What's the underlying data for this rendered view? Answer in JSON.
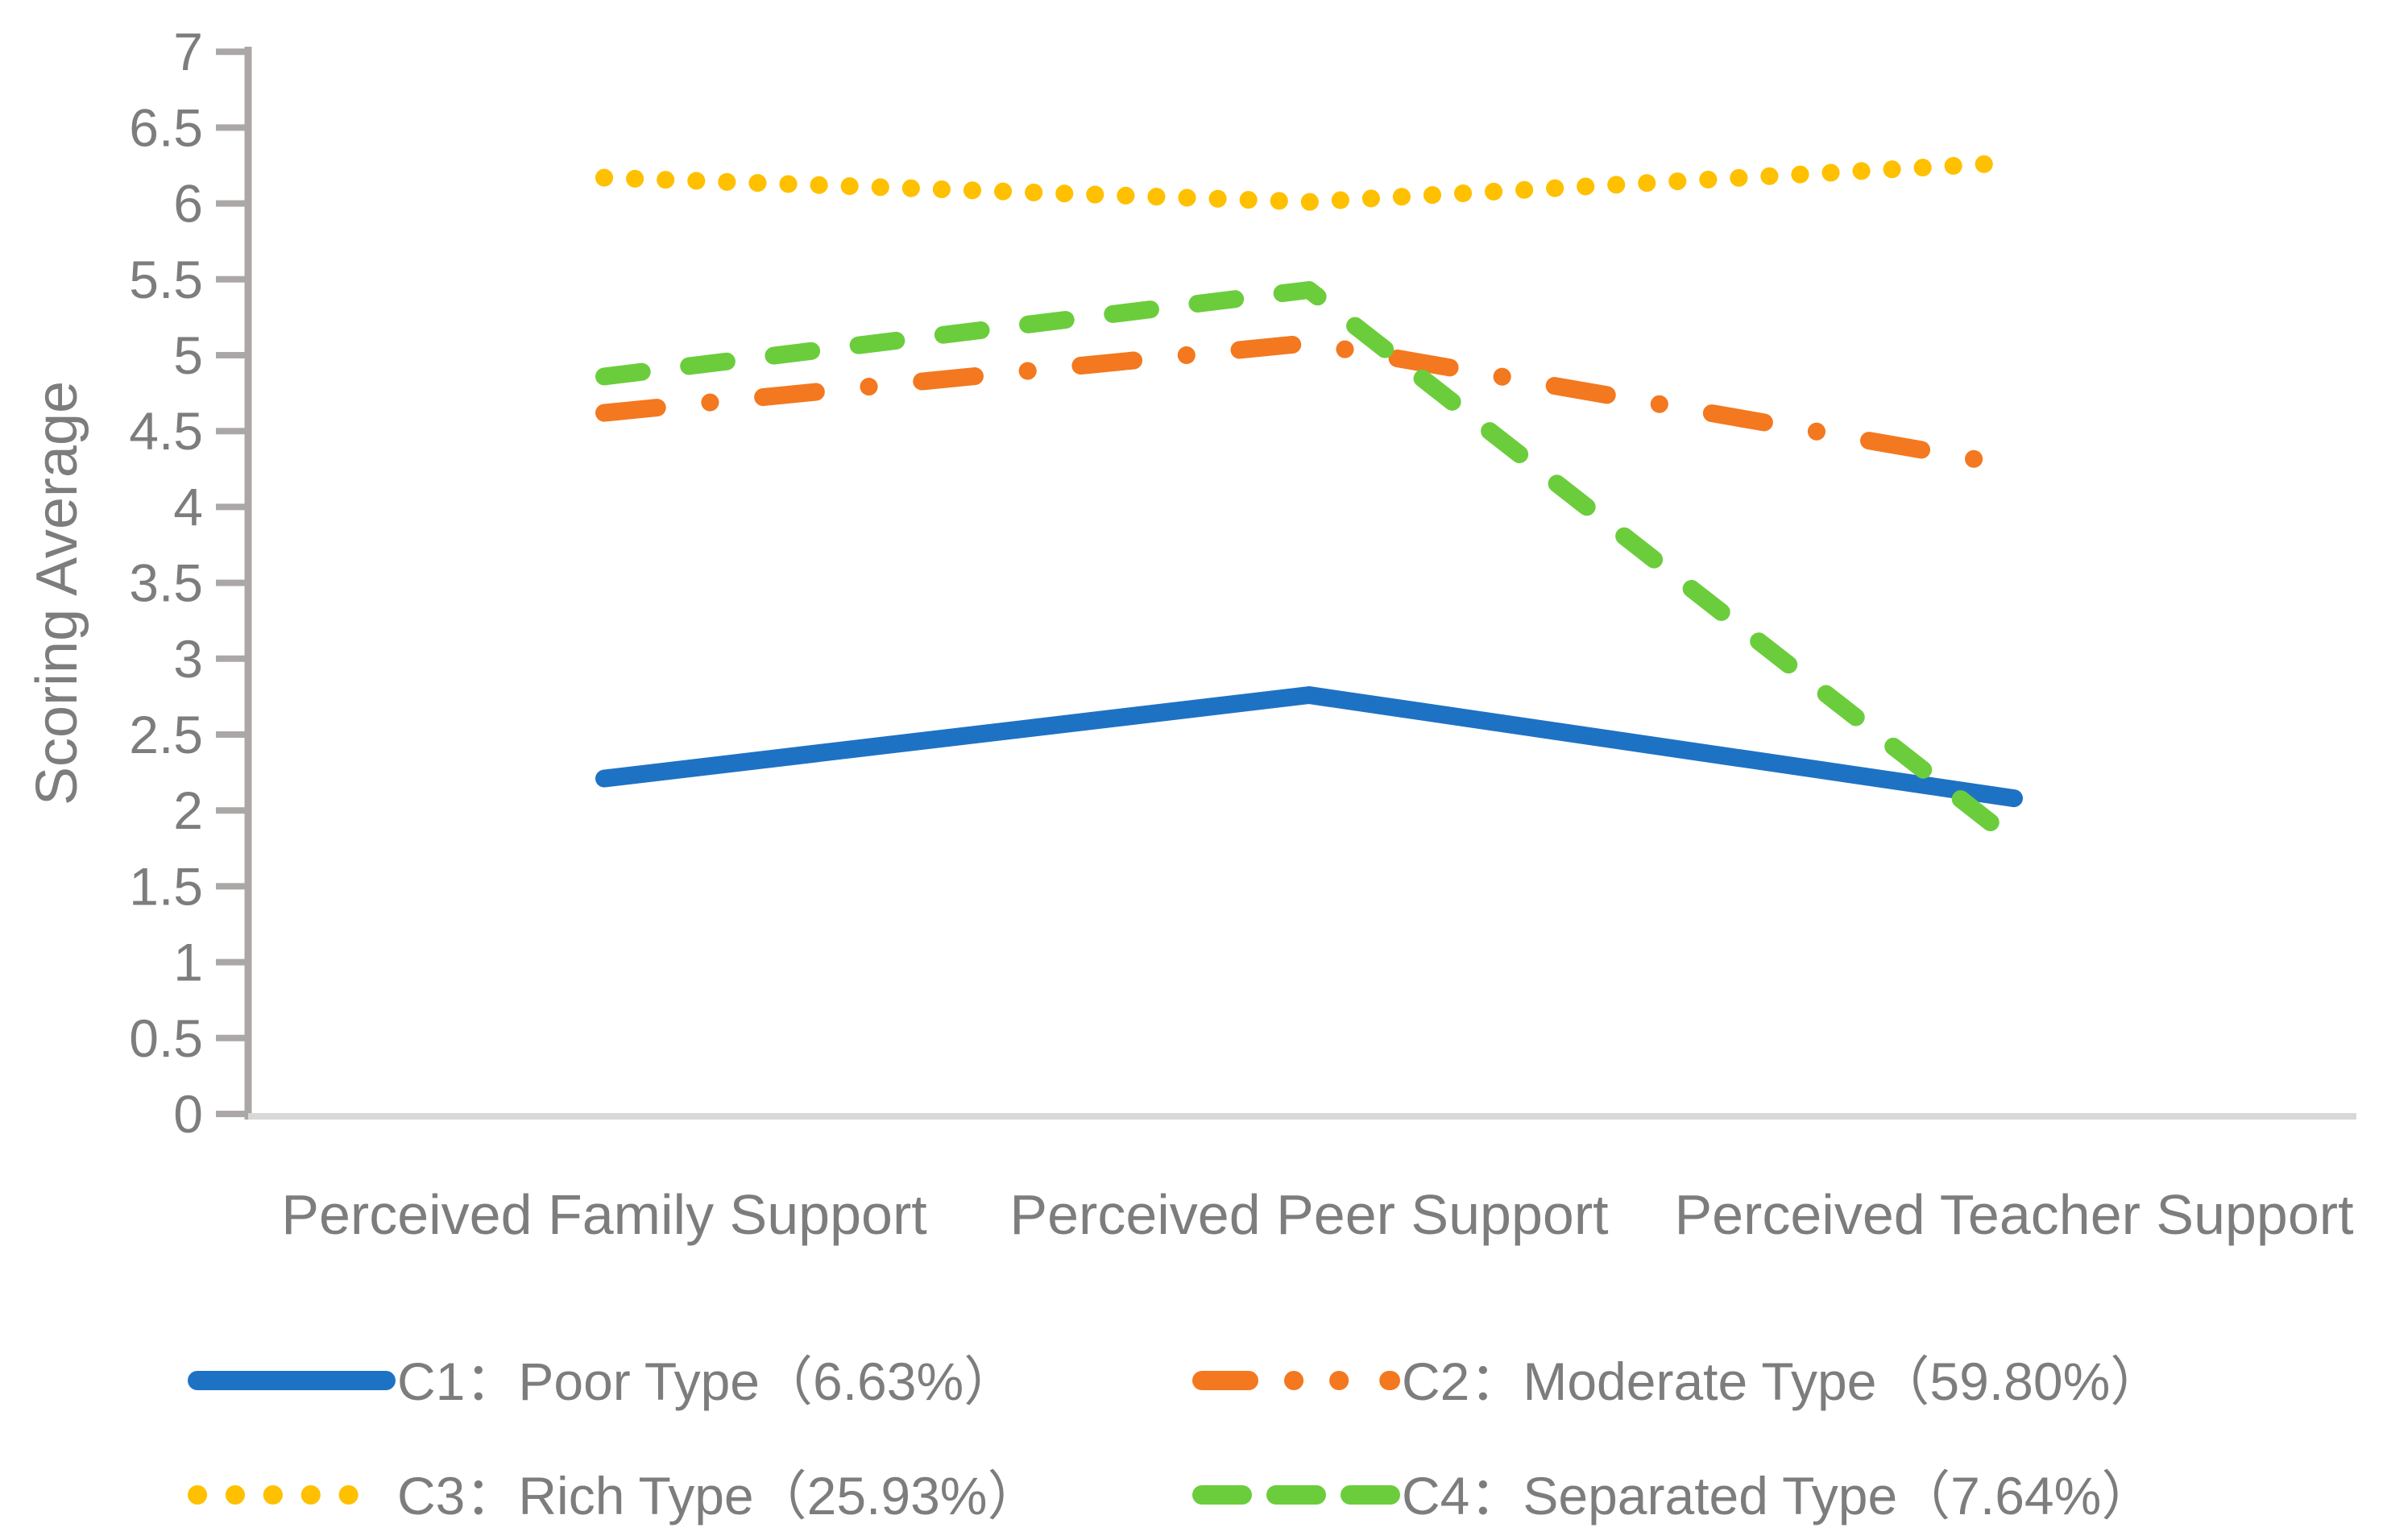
{
  "chart_data": {
    "type": "line",
    "title": "",
    "xlabel": "",
    "ylabel": "Scoring Average",
    "ylim": [
      0,
      7
    ],
    "ytick_step": 0.5,
    "y_tick_labels": [
      "0",
      "0.5",
      "1",
      "1.5",
      "2",
      "2.5",
      "3",
      "3.5",
      "4",
      "4.5",
      "5",
      "5.5",
      "6",
      "6.5",
      "7"
    ],
    "grid": false,
    "legend_position": "bottom",
    "categories": [
      "Perceived Family Support",
      "Perceived Peer Support",
      "Perceived Teacher Support"
    ],
    "series": [
      {
        "name": "C1：Poor Type（6.63%）",
        "values": [
          2.21,
          2.76,
          2.08
        ],
        "color": "#1E72C4",
        "style": "solid"
      },
      {
        "name": "C2：Moderate Type（59.80%）",
        "values": [
          4.62,
          5.08,
          4.27
        ],
        "color": "#F3781F",
        "style": "dash-dot"
      },
      {
        "name": "C3：Rich Type（25.93%）",
        "values": [
          6.17,
          6.01,
          6.27
        ],
        "color": "#FFC000",
        "style": "dotted"
      },
      {
        "name": "C4：Separated Type（7.64%）",
        "values": [
          4.86,
          5.43,
          1.8
        ],
        "color": "#6BCD3C",
        "style": "dashed"
      }
    ]
  },
  "colors": {
    "axis_tick": "#ACA7A7",
    "axis_line": "#ACA7A7",
    "baseline": "#D8D8D8",
    "label_text": "#7D7D7D"
  }
}
